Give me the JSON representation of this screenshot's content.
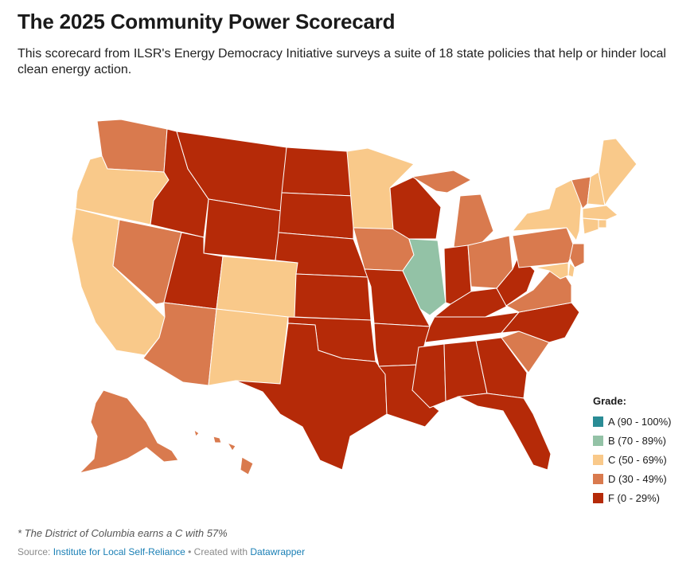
{
  "title": "The 2025 Community Power Scorecard",
  "subtitle": "This scorecard from ILSR's Energy Democracy Initiative surveys a suite of 18 state policies that help or hinder local clean energy action.",
  "legend": {
    "title": "Grade:",
    "items": [
      {
        "grade": "A",
        "label": "A (90 - 100%)",
        "color": "#2a8c95"
      },
      {
        "grade": "B",
        "label": "B (70 - 89%)",
        "color": "#93c2a6"
      },
      {
        "grade": "C",
        "label": "C (50 - 69%)",
        "color": "#f9c98a"
      },
      {
        "grade": "D",
        "label": "D (30 - 49%)",
        "color": "#d97a4e"
      },
      {
        "grade": "F",
        "label": "F (0 - 29%)",
        "color": "#b52a08"
      }
    ]
  },
  "states": {
    "WA": "D",
    "OR": "C",
    "CA": "C",
    "NV": "D",
    "ID": "F",
    "MT": "F",
    "WY": "F",
    "UT": "F",
    "CO": "C",
    "AZ": "D",
    "NM": "C",
    "ND": "F",
    "SD": "F",
    "NE": "F",
    "KS": "F",
    "OK": "F",
    "TX": "F",
    "MN": "C",
    "IA": "D",
    "MO": "F",
    "AR": "F",
    "LA": "F",
    "WI": "F",
    "IL": "B",
    "MI": "D",
    "IN": "F",
    "OH": "D",
    "KY": "F",
    "TN": "F",
    "MS": "F",
    "AL": "F",
    "GA": "F",
    "FL": "F",
    "SC": "D",
    "NC": "F",
    "VA": "D",
    "WV": "F",
    "PA": "D",
    "NY": "C",
    "VT": "D",
    "NH": "C",
    "ME": "C",
    "MA": "C",
    "RI": "C",
    "CT": "C",
    "NJ": "D",
    "DE": "C",
    "MD": "C",
    "AK": "D",
    "HI": "D"
  },
  "footnote": "* The District of Columbia earns a C with 57%",
  "source": {
    "prefix": "Source: ",
    "org": "Institute for Local Self-Reliance",
    "separator": " • Created with ",
    "tool": "Datawrapper"
  }
}
